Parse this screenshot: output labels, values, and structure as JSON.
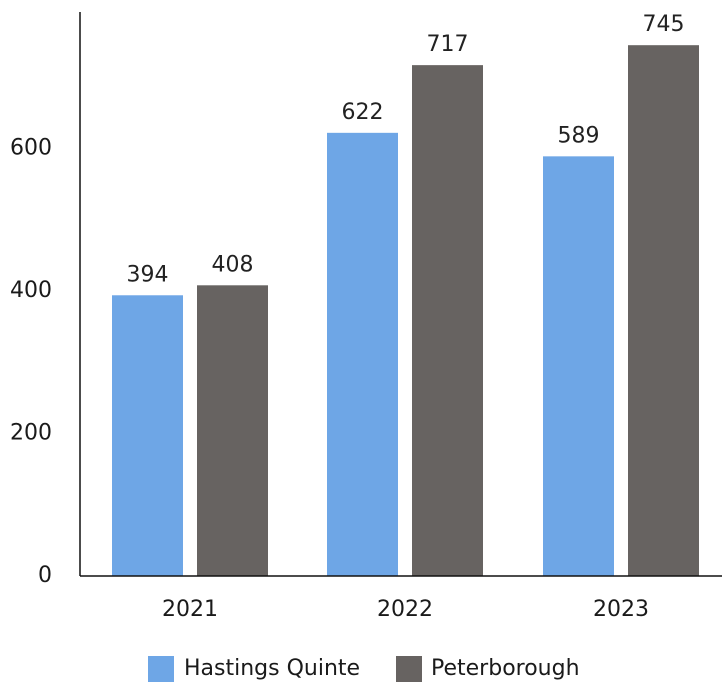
{
  "chart_data": {
    "type": "bar",
    "categories": [
      "2021",
      "2022",
      "2023"
    ],
    "series": [
      {
        "name": "Hastings Quinte",
        "values": [
          394,
          622,
          589
        ],
        "color": "#6ea6e6"
      },
      {
        "name": "Peterborough",
        "values": [
          408,
          717,
          745
        ],
        "color": "#676361"
      }
    ],
    "y_ticks": [
      "0",
      "200",
      "400",
      "600"
    ],
    "ylim": [
      0,
      760
    ],
    "grid": false,
    "legend_position": "bottom-center",
    "title": "",
    "xlabel": "",
    "ylabel": ""
  }
}
